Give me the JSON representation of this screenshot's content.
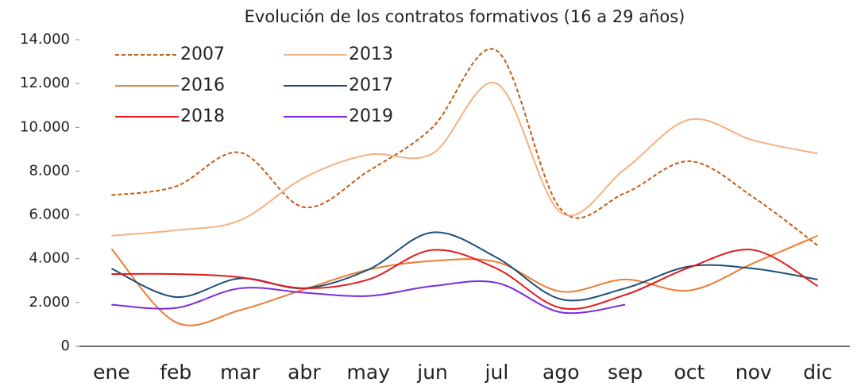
{
  "chart_data": {
    "type": "line",
    "title": "Evolución de los contratos formativos (16 a 29 años)",
    "categories": [
      "ene",
      "feb",
      "mar",
      "abr",
      "may",
      "jun",
      "jul",
      "ago",
      "sep",
      "oct",
      "nov",
      "dic"
    ],
    "ylim": [
      0,
      14000
    ],
    "yticks": [
      0,
      {
        "value": 2000,
        "label": "2.000"
      },
      {
        "value": 4000,
        "label": "4.000"
      },
      {
        "value": 6000,
        "label": "6.000"
      },
      {
        "value": 8000,
        "label": "8.000"
      },
      {
        "value": 10000,
        "label": "10.000"
      },
      {
        "value": 12000,
        "label": "12.000"
      },
      {
        "value": 14000,
        "label": "14.000"
      }
    ],
    "grid": false,
    "smooth": true,
    "series": [
      {
        "name": "2007",
        "color": "#c55a11",
        "dashed": true,
        "values": [
          6900,
          7300,
          8850,
          6350,
          8000,
          10000,
          13500,
          6250,
          7000,
          8450,
          6800,
          4600
        ]
      },
      {
        "name": "2013",
        "color": "#f4b183",
        "values": [
          5050,
          5300,
          5750,
          7700,
          8750,
          8800,
          12000,
          6100,
          8100,
          10350,
          9400,
          8800
        ]
      },
      {
        "name": "2016",
        "color": "#ed7d31",
        "values": [
          4450,
          1100,
          1650,
          2600,
          3500,
          3900,
          3850,
          2500,
          3050,
          2550,
          3800,
          5050
        ]
      },
      {
        "name": "2017",
        "color": "#1f4e79",
        "values": [
          3550,
          2250,
          3100,
          2650,
          3500,
          5200,
          4050,
          2150,
          2650,
          3650,
          3550,
          3050
        ]
      },
      {
        "name": "2018",
        "color": "#e41a1c",
        "values": [
          3300,
          3300,
          3150,
          2650,
          3050,
          4400,
          3550,
          1750,
          2350,
          3600,
          4400,
          2750
        ]
      },
      {
        "name": "2019",
        "color": "#7b2be0",
        "values": [
          1900,
          1750,
          2650,
          2450,
          2300,
          2750,
          2900,
          1550,
          1900,
          null,
          null,
          null
        ]
      }
    ]
  }
}
